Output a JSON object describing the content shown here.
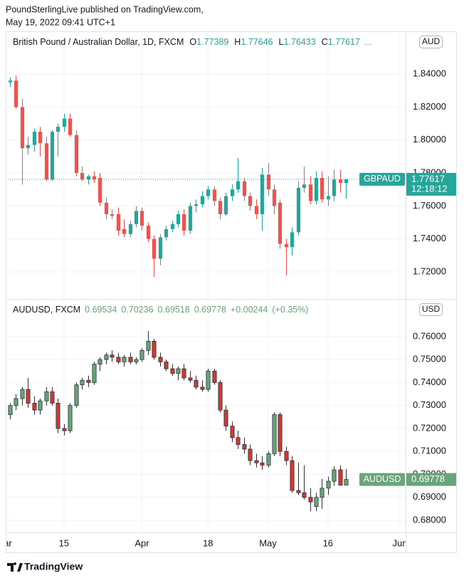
{
  "header": {
    "publisher": "PoundSterlingLive published on TradingView.com,",
    "datetime": "May 19, 2022 09:41 UTC+1"
  },
  "chart_data": [
    {
      "type": "candlestick",
      "legend": {
        "name": "British Pound / Australian Dollar, 1D, FXCM",
        "fields": [
          [
            "O",
            "1.77389"
          ],
          [
            "H",
            "1.77646"
          ],
          [
            "L",
            "1.76433"
          ],
          [
            "C",
            "1.77617"
          ],
          [
            "",
            "..."
          ]
        ]
      },
      "currency": "AUD",
      "symbol": "GBPAUD",
      "last_label": "1.77617",
      "countdown": "12:18:12",
      "up_color": "#26a69a",
      "down_color": "#ef5350",
      "open": [
        1.835,
        1.836,
        1.82,
        1.795,
        1.797,
        1.805,
        1.798,
        1.776,
        1.805,
        1.808,
        1.813,
        1.803,
        1.78,
        1.776,
        1.778,
        1.777,
        1.762,
        1.755,
        1.755,
        1.746,
        1.743,
        1.749,
        1.757,
        1.748,
        1.74,
        1.728,
        1.741,
        1.746,
        1.749,
        1.755,
        1.745,
        1.76,
        1.761,
        1.766,
        1.77,
        1.763,
        1.755,
        1.766,
        1.77,
        1.775,
        1.766,
        1.76,
        1.755,
        1.779,
        1.77,
        1.762,
        1.737,
        1.735,
        1.744,
        1.771,
        1.773,
        1.763,
        1.777,
        1.764,
        1.766,
        1.776,
        1.77389
      ],
      "high": [
        1.838,
        1.839,
        1.825,
        1.802,
        1.807,
        1.808,
        1.802,
        1.806,
        1.81,
        1.816,
        1.816,
        1.806,
        1.784,
        1.779,
        1.781,
        1.78,
        1.765,
        1.758,
        1.759,
        1.752,
        1.751,
        1.76,
        1.759,
        1.75,
        1.742,
        1.743,
        1.748,
        1.751,
        1.757,
        1.758,
        1.762,
        1.764,
        1.769,
        1.772,
        1.772,
        1.765,
        1.768,
        1.773,
        1.789,
        1.777,
        1.768,
        1.764,
        1.783,
        1.786,
        1.773,
        1.764,
        1.74,
        1.747,
        1.775,
        1.784,
        1.778,
        1.781,
        1.781,
        1.778,
        1.782,
        1.782,
        1.77646
      ],
      "low": [
        1.832,
        1.819,
        1.773,
        1.791,
        1.793,
        1.79,
        1.775,
        1.775,
        1.79,
        1.805,
        1.802,
        1.778,
        1.775,
        1.773,
        1.774,
        1.76,
        1.752,
        1.752,
        1.742,
        1.741,
        1.741,
        1.747,
        1.745,
        1.738,
        1.717,
        1.724,
        1.739,
        1.744,
        1.747,
        1.742,
        1.743,
        1.756,
        1.759,
        1.764,
        1.76,
        1.752,
        1.754,
        1.763,
        1.768,
        1.763,
        1.757,
        1.752,
        1.745,
        1.766,
        1.755,
        1.734,
        1.718,
        1.73,
        1.742,
        1.768,
        1.761,
        1.761,
        1.762,
        1.76,
        1.763,
        1.768,
        1.76433
      ],
      "close": [
        1.836,
        1.82,
        1.795,
        1.797,
        1.805,
        1.798,
        1.776,
        1.805,
        1.808,
        1.813,
        1.803,
        1.78,
        1.776,
        1.778,
        1.776,
        1.762,
        1.755,
        1.754,
        1.745,
        1.743,
        1.749,
        1.757,
        1.748,
        1.74,
        1.728,
        1.741,
        1.746,
        1.749,
        1.755,
        1.745,
        1.76,
        1.761,
        1.766,
        1.77,
        1.763,
        1.755,
        1.766,
        1.77,
        1.775,
        1.766,
        1.76,
        1.755,
        1.779,
        1.77,
        1.76,
        1.737,
        1.735,
        1.744,
        1.771,
        1.773,
        1.763,
        1.777,
        1.764,
        1.766,
        1.776,
        1.774,
        1.77617
      ],
      "xlim": [
        -0.71,
        65.95
      ],
      "ylim": [
        1.7036,
        1.8659
      ],
      "yticks": [
        {
          "value": 1.72,
          "label": "1.72000"
        },
        {
          "value": 1.74,
          "label": "1.74000"
        },
        {
          "value": 1.76,
          "label": "1.76000"
        },
        {
          "value": 1.78,
          "label": "1.78000"
        },
        {
          "value": 1.8,
          "label": "1.80000"
        },
        {
          "value": 1.82,
          "label": "1.82000"
        },
        {
          "value": 1.84,
          "label": "1.84000"
        }
      ],
      "grid": true
    },
    {
      "type": "candlestick",
      "legend": {
        "name": "AUDUSD, FXCM",
        "fields": [
          [
            "",
            "0.69534"
          ],
          [
            "",
            "0.70236"
          ],
          [
            "",
            "0.69518"
          ],
          [
            "",
            "0.69778"
          ],
          [
            "",
            "+0.00244"
          ],
          [
            "",
            "(+0.35%)"
          ]
        ]
      },
      "currency": "USD",
      "symbol": "AUDUSD",
      "last_label": "0.69778",
      "up_color": "#6aa57a",
      "down_color": "#cf3a32",
      "border_color": "#2a2e39",
      "open": [
        0.726,
        0.73,
        0.733,
        0.737,
        0.731,
        0.728,
        0.732,
        0.736,
        0.731,
        0.72,
        0.719,
        0.73,
        0.739,
        0.741,
        0.74,
        0.748,
        0.75,
        0.752,
        0.751,
        0.749,
        0.751,
        0.749,
        0.75,
        0.754,
        0.758,
        0.751,
        0.749,
        0.746,
        0.744,
        0.746,
        0.742,
        0.741,
        0.738,
        0.737,
        0.745,
        0.74,
        0.728,
        0.721,
        0.716,
        0.713,
        0.711,
        0.706,
        0.705,
        0.704,
        0.709,
        0.726,
        0.71,
        0.706,
        0.693,
        0.692,
        0.69,
        0.686,
        0.69,
        0.694,
        0.697,
        0.702,
        0.69534
      ],
      "high": [
        0.731,
        0.735,
        0.738,
        0.742,
        0.734,
        0.733,
        0.738,
        0.738,
        0.733,
        0.722,
        0.731,
        0.74,
        0.742,
        0.743,
        0.749,
        0.751,
        0.753,
        0.754,
        0.753,
        0.752,
        0.753,
        0.751,
        0.755,
        0.7625,
        0.759,
        0.753,
        0.75,
        0.748,
        0.747,
        0.748,
        0.745,
        0.743,
        0.741,
        0.746,
        0.746,
        0.741,
        0.73,
        0.723,
        0.719,
        0.716,
        0.713,
        0.709,
        0.708,
        0.71,
        0.727,
        0.727,
        0.712,
        0.708,
        0.705,
        0.704,
        0.694,
        0.692,
        0.698,
        0.699,
        0.7035,
        0.704,
        0.70236
      ],
      "low": [
        0.724,
        0.728,
        0.73,
        0.729,
        0.726,
        0.726,
        0.73,
        0.73,
        0.718,
        0.717,
        0.718,
        0.729,
        0.737,
        0.738,
        0.739,
        0.745,
        0.748,
        0.749,
        0.748,
        0.747,
        0.748,
        0.748,
        0.749,
        0.752,
        0.75,
        0.747,
        0.745,
        0.743,
        0.741,
        0.741,
        0.74,
        0.737,
        0.736,
        0.736,
        0.739,
        0.727,
        0.719,
        0.714,
        0.711,
        0.709,
        0.704,
        0.703,
        0.702,
        0.703,
        0.708,
        0.708,
        0.704,
        0.692,
        0.691,
        0.689,
        0.684,
        0.684,
        0.685,
        0.691,
        0.695,
        0.695,
        0.69518
      ],
      "close": [
        0.73,
        0.733,
        0.737,
        0.731,
        0.728,
        0.732,
        0.736,
        0.731,
        0.72,
        0.719,
        0.73,
        0.739,
        0.741,
        0.74,
        0.748,
        0.75,
        0.752,
        0.751,
        0.749,
        0.751,
        0.749,
        0.75,
        0.754,
        0.758,
        0.751,
        0.749,
        0.746,
        0.744,
        0.746,
        0.742,
        0.741,
        0.738,
        0.737,
        0.745,
        0.74,
        0.728,
        0.721,
        0.716,
        0.713,
        0.711,
        0.706,
        0.705,
        0.704,
        0.709,
        0.726,
        0.71,
        0.706,
        0.693,
        0.692,
        0.69,
        0.688,
        0.69,
        0.694,
        0.697,
        0.702,
        0.6953,
        0.69778
      ],
      "xlim": [
        -0.71,
        65.95
      ],
      "ylim": [
        0.6747,
        0.7764
      ],
      "yticks": [
        {
          "value": 0.68,
          "label": "0.68000"
        },
        {
          "value": 0.69,
          "label": "0.69000"
        },
        {
          "value": 0.7,
          "label": "0.70000"
        },
        {
          "value": 0.71,
          "label": "0.71000"
        },
        {
          "value": 0.72,
          "label": "0.72000"
        },
        {
          "value": 0.73,
          "label": "0.73000"
        },
        {
          "value": 0.74,
          "label": "0.74000"
        },
        {
          "value": 0.75,
          "label": "0.75000"
        },
        {
          "value": 0.76,
          "label": "0.76000"
        }
      ],
      "xticks": [
        {
          "value": -1,
          "label": "Mar"
        },
        {
          "value": 9,
          "label": "15"
        },
        {
          "value": 22,
          "label": "Apr"
        },
        {
          "value": 33,
          "label": "18"
        },
        {
          "value": 43,
          "label": "May"
        },
        {
          "value": 53,
          "label": "16"
        },
        {
          "value": 65,
          "label": "Jun"
        }
      ],
      "grid": true
    }
  ],
  "footer": {
    "brand": "TradingView"
  }
}
